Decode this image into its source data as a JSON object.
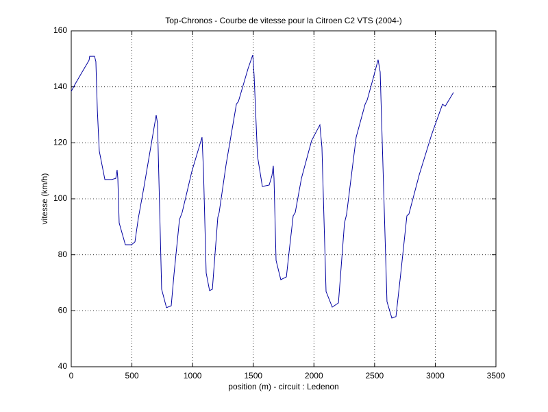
{
  "chart_data": {
    "type": "line",
    "title": "Top-Chronos - Courbe de vitesse pour la Citroen C2 VTS (2004-)",
    "x_label": "position (m) - circuit : Ledenon",
    "y_label": "vitesse (km/h)",
    "xlim": [
      0,
      3500
    ],
    "xticks": [
      0,
      500,
      1000,
      1500,
      2000,
      2500,
      3000,
      3500
    ],
    "ylim": [
      40,
      160
    ],
    "yticks": [
      40,
      60,
      80,
      100,
      120,
      140,
      160
    ],
    "grid": true,
    "series": [
      {
        "name": "vitesse",
        "color": "#0000a0",
        "x": [
          0,
          34,
          90,
          147,
          152,
          192,
          203,
          215,
          231,
          277,
          333,
          367,
          378,
          384,
          395,
          446,
          497,
          525,
          553,
          598,
          655,
          700,
          711,
          745,
          785,
          824,
          847,
          892,
          914,
          994,
          1078,
          1090,
          1112,
          1140,
          1163,
          1208,
          1219,
          1276,
          1361,
          1378,
          1457,
          1496,
          1507,
          1535,
          1575,
          1631,
          1654,
          1665,
          1671,
          1688,
          1727,
          1773,
          1795,
          1829,
          1846,
          1897,
          1981,
          2049,
          2066,
          2100,
          2151,
          2202,
          2252,
          2269,
          2348,
          2422,
          2439,
          2490,
          2529,
          2546,
          2602,
          2642,
          2676,
          2715,
          2766,
          2783,
          2868,
          2969,
          3043,
          3060,
          3082,
          3150
        ],
        "values": [
          138.4,
          141.1,
          145.3,
          149.5,
          150.9,
          150.9,
          149,
          131.8,
          117.1,
          106.9,
          106.9,
          107.3,
          110.3,
          107.3,
          91.4,
          83.6,
          83.6,
          84.6,
          93.1,
          103.9,
          118.4,
          129.9,
          127,
          67.7,
          61.1,
          61.8,
          73.1,
          92.6,
          95.1,
          109.8,
          122,
          109.8,
          73.5,
          67.2,
          67.7,
          93.4,
          95.1,
          112.2,
          133.8,
          134.8,
          146.5,
          151.4,
          144.1,
          115.2,
          104.4,
          104.9,
          108.3,
          111.8,
          107.3,
          78,
          71.1,
          72.1,
          80.9,
          93.9,
          95.1,
          107.3,
          120.8,
          126.4,
          118.4,
          66.9,
          61.3,
          62.8,
          91.4,
          94.4,
          122,
          133.8,
          135.3,
          143.3,
          149.7,
          145.3,
          63.3,
          57.4,
          57.9,
          73.1,
          93.9,
          94.6,
          108.6,
          122.8,
          131.8,
          133.8,
          133.1,
          138
        ]
      }
    ]
  }
}
